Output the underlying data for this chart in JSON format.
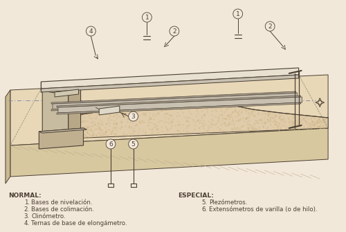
{
  "bg_color": "#f2e8da",
  "line_color": "#4a3f32",
  "legend_normal_title": "NORMAL:",
  "legend_special_title": "ESPECIAL:",
  "legend_items_normal": [
    [
      "1.",
      "Bases de nivelación."
    ],
    [
      "2.",
      "Bases de colimación."
    ],
    [
      "3.",
      "Clinómetro."
    ],
    [
      "4.",
      "Ternas de base de elongámetro."
    ]
  ],
  "legend_items_special": [
    [
      "5.",
      "Plezómetros."
    ],
    [
      "6.",
      "Extensómetros de varilla (o de hilo)."
    ]
  ],
  "dashed_line_color": "#8888aa",
  "font_size_legend": 6.2,
  "ground_top_color": "#e8d8b8",
  "ground_front_color": "#d8c8a0",
  "ground_left_color": "#c8b890",
  "embank_top_color": "#e0ccaa",
  "embank_dot_color": "#c8b080",
  "abutment_front_color": "#c8bca0",
  "abutment_side_color": "#b8a888",
  "abutment_top_color": "#d8ceb8",
  "footing_color": "#c0b090",
  "deck_top_color": "#e8e0d0",
  "deck_side_color": "#c8c0b0",
  "deck_beam_color": "#b8b0a0",
  "ibeam_color": "#d0c8b8"
}
